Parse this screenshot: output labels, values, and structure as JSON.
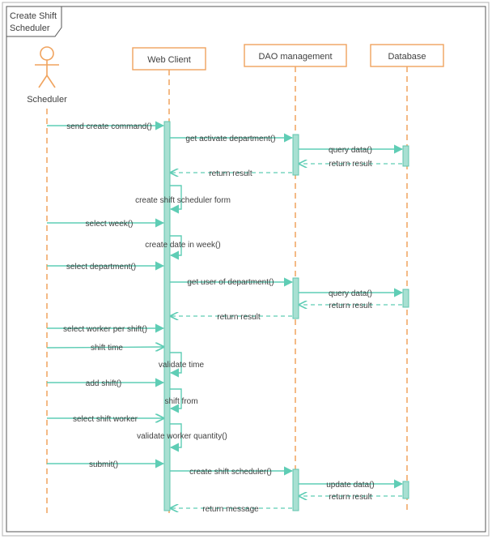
{
  "frame": {
    "title_line1": "Create Shift",
    "title_line2": "Scheduler"
  },
  "actor": {
    "name": "Scheduler"
  },
  "participants": {
    "web_client": "Web Client",
    "dao": "DAO management",
    "database": "Database"
  },
  "messages": {
    "m01": "send create command()",
    "m02": "get activate department()",
    "m03": "query data()",
    "m04": "return result",
    "m05": "return result",
    "m06": "create shift scheduler form",
    "m07": "select week()",
    "m08": "create date in week()",
    "m09": "select department()",
    "m10": "get user of department()",
    "m11": "query data()",
    "m12": "return result",
    "m13": "return result",
    "m14": "select worker per shift()",
    "m15": "shift time",
    "m16": "validate time",
    "m17": "add shift()",
    "m18": "shift from",
    "m19": "select shift worker",
    "m20": "validate worker quantity()",
    "m21": "submit()",
    "m22": "create shift scheduler()",
    "m23": "update data()",
    "m24": "return result",
    "m25": "return message"
  },
  "colors": {
    "border": "#bfbfbf",
    "frame": "#555555",
    "participant_stroke": "#f0a35e",
    "lifeline": "#f0a35e",
    "arrow": "#5fcdb5",
    "activation_fill": "#a8e0d2",
    "activation_stroke": "#5fc4ad",
    "text": "#404040"
  }
}
